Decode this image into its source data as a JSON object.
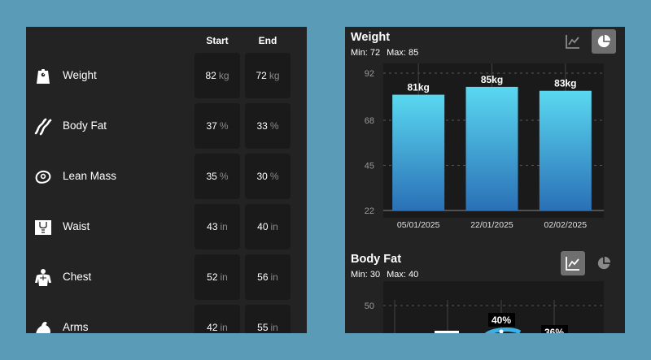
{
  "table": {
    "headers": {
      "start": "Start",
      "end": "End"
    },
    "rows": [
      {
        "icon": "scale-icon",
        "label": "Weight",
        "start": "82",
        "end": "72",
        "unit": "kg"
      },
      {
        "icon": "bacon-icon",
        "label": "Body Fat",
        "start": "37",
        "end": "33",
        "unit": "%"
      },
      {
        "icon": "steak-icon",
        "label": "Lean Mass",
        "start": "35",
        "end": "30",
        "unit": "%"
      },
      {
        "icon": "torso-icon",
        "label": "Waist",
        "start": "43",
        "end": "40",
        "unit": "in"
      },
      {
        "icon": "chest-icon",
        "label": "Chest",
        "start": "52",
        "end": "56",
        "unit": "in"
      },
      {
        "icon": "flexed-arm-icon",
        "label": "Arms",
        "start": "42",
        "end": "55",
        "unit": "in"
      }
    ]
  },
  "weight_card": {
    "title": "Weight",
    "min_label": "Min: 72",
    "max_label": "Max: 85",
    "active_view": "bar",
    "icons": {
      "line": "line-chart-icon",
      "pie": "pie-chart-icon"
    }
  },
  "bodyfat_card": {
    "title": "Body Fat",
    "min_label": "Min: 30",
    "max_label": "Max: 40",
    "active_view": "line",
    "icons": {
      "line": "line-chart-icon",
      "pie": "pie-chart-icon"
    }
  },
  "colors": {
    "bar_top": "#5ad8f0",
    "bar_bottom": "#2a70b6",
    "panel": "#232323",
    "chart_bg": "#1a1a1a",
    "background": "#5a9cb7"
  },
  "chart_data": [
    {
      "type": "bar",
      "title": "Weight",
      "categories": [
        "05/01/2025",
        "22/01/2025",
        "02/02/2025"
      ],
      "values": [
        81,
        85,
        83
      ],
      "data_labels": [
        "81kg",
        "85kg",
        "83kg"
      ],
      "y_ticks": [
        "92",
        "68",
        "45",
        "22"
      ],
      "ylim": [
        22,
        92
      ],
      "grid": true
    },
    {
      "type": "line",
      "title": "Body Fat",
      "y_ticks": [
        "50"
      ],
      "ylim": [
        30,
        50
      ],
      "data_labels": [
        "40%",
        "36%"
      ],
      "grid": true
    }
  ]
}
